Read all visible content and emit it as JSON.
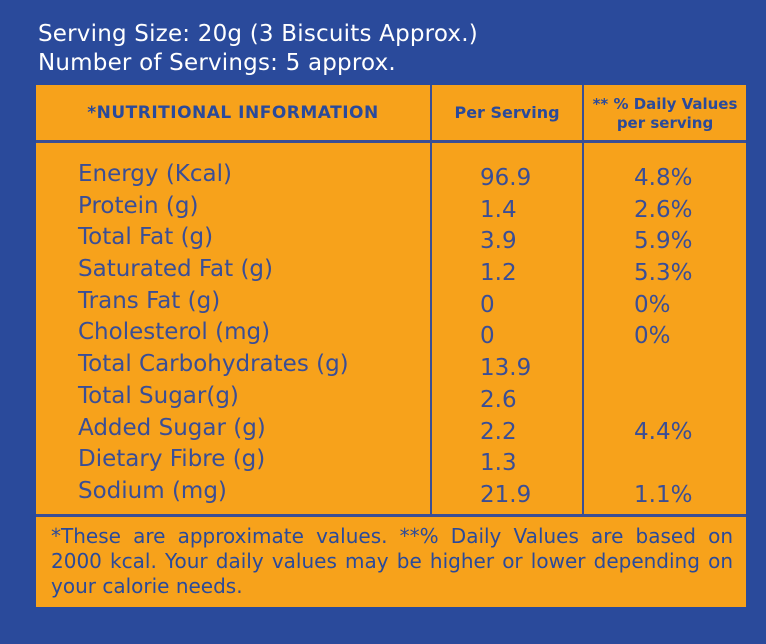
{
  "serving": {
    "size": "Serving Size: 20g (3 Biscuits Approx.)",
    "count": "Number of Servings: 5 approx."
  },
  "table": {
    "headers": {
      "nutrition": "*NUTRITIONAL INFORMATION",
      "per_serving": "Per Serving",
      "dv_line1": "** % Daily Values",
      "dv_line2": "per serving"
    },
    "rows": [
      {
        "name": "Energy (Kcal)",
        "per_serving": "96.9",
        "dv": "4.8%"
      },
      {
        "name": "Protein (g)",
        "per_serving": "1.4",
        "dv": "2.6%"
      },
      {
        "name": "Total Fat (g)",
        "per_serving": "3.9",
        "dv": "5.9%"
      },
      {
        "name": "Saturated Fat (g)",
        "per_serving": "1.2",
        "dv": "5.3%"
      },
      {
        "name": "Trans Fat (g)",
        "per_serving": "0",
        "dv": "0%"
      },
      {
        "name": "Cholesterol (mg)",
        "per_serving": "0",
        "dv": "0%"
      },
      {
        "name": "Total Carbohydrates (g)",
        "per_serving": "13.9",
        "dv": ""
      },
      {
        "name": "Total Sugar(g)",
        "per_serving": "2.6",
        "dv": ""
      },
      {
        "name": "Added Sugar (g)",
        "per_serving": "2.2",
        "dv": "4.4%"
      },
      {
        "name": "Dietary Fibre (g)",
        "per_serving": "1.3",
        "dv": ""
      },
      {
        "name": "Sodium (mg)",
        "per_serving": "21.9",
        "dv": "1.1%"
      }
    ]
  },
  "footnote": "*These are approximate values. **% Daily Values are based on 2000 kcal. Your daily values may be higher or lower depending on your calorie needs.",
  "colors": {
    "background": "#2a4a9b",
    "panel": "#f7a21b",
    "text": "#3a4e96"
  }
}
